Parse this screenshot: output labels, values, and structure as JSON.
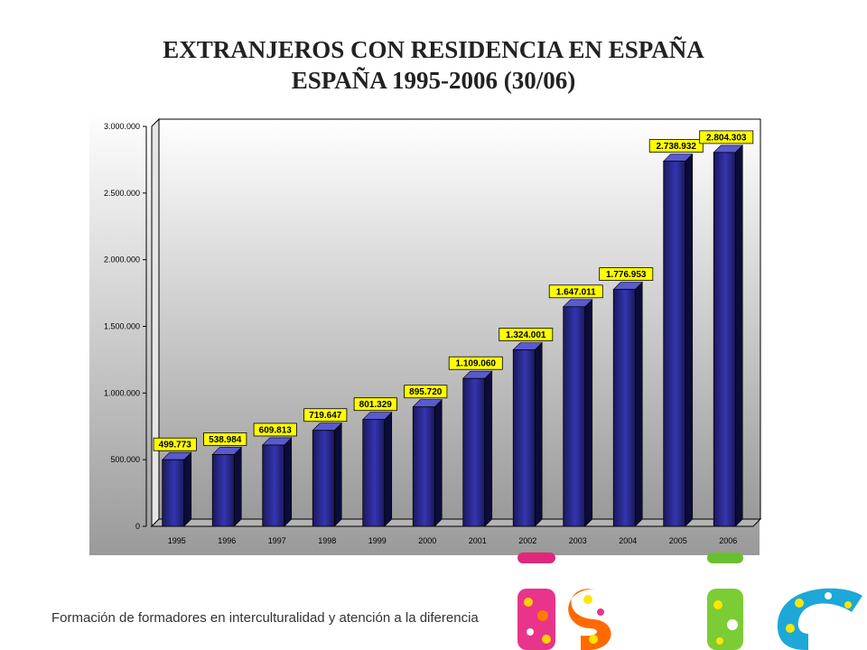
{
  "slide": {
    "title_line1": "EXTRANJEROS CON RESIDENCIA  EN ESPAÑA",
    "title_line2": "ESPAÑA 1995-2006 (30/06)",
    "footer": "Formación de formadores en interculturalidad y atención a la diferencia"
  },
  "colors": {
    "bar_front_dark": "#1a1a5c",
    "bar_front_light": "#3434b0",
    "label_background": "#ffff00",
    "plot_background_top": "#ffffff",
    "plot_background_bottom": "#9a9a9a"
  },
  "chart_data": {
    "type": "bar",
    "title": "",
    "xlabel": "",
    "ylabel": "",
    "categories": [
      "1995",
      "1996",
      "1997",
      "1998",
      "1999",
      "2000",
      "2001",
      "2002",
      "2003",
      "2004",
      "2005",
      "2006"
    ],
    "values": [
      499773,
      538984,
      609813,
      719647,
      801329,
      895720,
      1109060,
      1324001,
      1647011,
      1776953,
      2738932,
      2804303
    ],
    "data_labels": [
      "499.773",
      "538.984",
      "609.813",
      "719.647",
      "801.329",
      "895.720",
      "1.109.060",
      "1.324.001",
      "1.647.011",
      "1.776.953",
      "2.738.932",
      "2.804.303"
    ],
    "ylim": [
      0,
      3000000
    ],
    "yticks": [
      0,
      500000,
      1000000,
      1500000,
      2000000,
      2500000,
      3000000
    ],
    "ytick_labels": [
      "0",
      "500.000",
      "1.000.000",
      "1.500.000",
      "2.000.000",
      "2.500.000",
      "3.000.000"
    ],
    "grid": false,
    "legend": "none",
    "style": "3d-bars"
  }
}
